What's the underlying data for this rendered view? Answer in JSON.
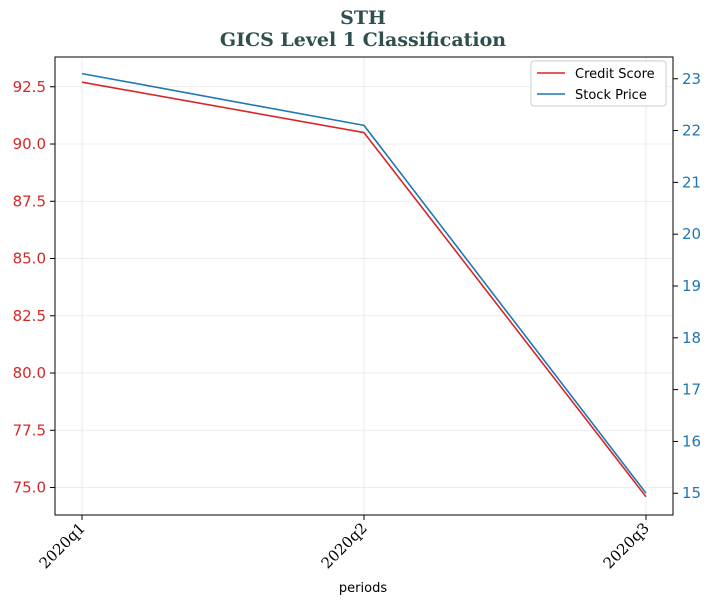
{
  "chart_data": {
    "type": "line",
    "title": "STH",
    "subtitle": "GICS Level 1 Classification",
    "xlabel": "periods",
    "categories": [
      "2020q1",
      "2020q2",
      "2020q3"
    ],
    "y_left": {
      "ylim": [
        73.8,
        93.8
      ],
      "ticks": [
        75.0,
        77.5,
        80.0,
        82.5,
        85.0,
        87.5,
        90.0,
        92.5
      ],
      "tick_labels": [
        "75.0",
        "77.5",
        "80.0",
        "82.5",
        "85.0",
        "87.5",
        "90.0",
        "92.5"
      ],
      "color": "#d62728"
    },
    "y_right": {
      "ylim": [
        14.58,
        23.42
      ],
      "ticks": [
        15,
        16,
        17,
        18,
        19,
        20,
        21,
        22,
        23
      ],
      "tick_labels": [
        "15",
        "16",
        "17",
        "18",
        "19",
        "20",
        "21",
        "22",
        "23"
      ],
      "color": "#1f77b4"
    },
    "series": [
      {
        "name": "Credit Score",
        "axis": "left",
        "color": "#d62728",
        "values": [
          92.7,
          90.5,
          74.6
        ]
      },
      {
        "name": "Stock Price",
        "axis": "right",
        "color": "#1f77b4",
        "values": [
          23.1,
          22.1,
          15.0
        ]
      }
    ],
    "grid": true,
    "legend_position": "top-right",
    "title_color": "#2f4f4f"
  }
}
